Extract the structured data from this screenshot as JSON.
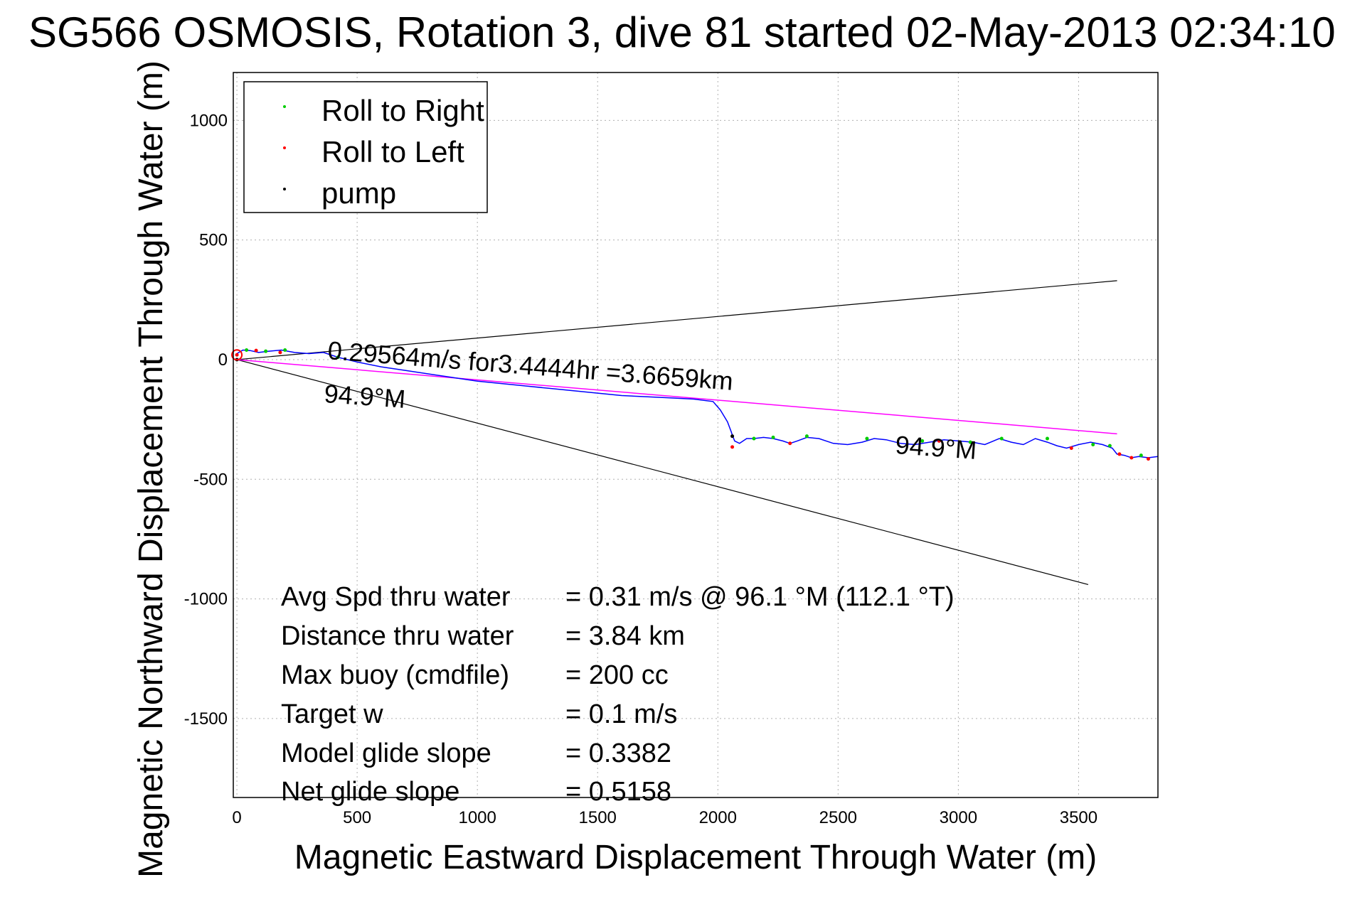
{
  "chart_data": {
    "type": "scatter",
    "title": "SG566 OSMOSIS, Rotation 3, dive 81 started 02-May-2013 02:34:10",
    "xlabel": "Magnetic Eastward Displacement Through Water (m)",
    "ylabel": "Magnetic Northward Displacement Through Water (m)",
    "xlim": [
      -15,
      3830
    ],
    "ylim": [
      -1830,
      1200
    ],
    "xticks": [
      0,
      500,
      1000,
      1500,
      2000,
      2500,
      3000,
      3500
    ],
    "yticks": [
      1000,
      500,
      0,
      -500,
      -1000,
      -1500
    ],
    "grid": true,
    "legend": {
      "placement": "top-left",
      "entries": [
        {
          "label": "Roll to Right",
          "color": "#00cc00"
        },
        {
          "label": "Roll to Left",
          "color": "#ff0000"
        },
        {
          "label": "pump",
          "color": "#000000"
        }
      ]
    },
    "colors": {
      "track": "#0000ff",
      "heading": "#ff00ff",
      "cone": "#000000"
    },
    "track": {
      "x": [
        0,
        25,
        55,
        90,
        130,
        185,
        240,
        300,
        360,
        420,
        500,
        600,
        700,
        800,
        900,
        1000,
        1100,
        1200,
        1300,
        1400,
        1500,
        1600,
        1700,
        1800,
        1900,
        1980,
        2010,
        2040,
        2055,
        2062,
        2070,
        2090,
        2120,
        2150,
        2190,
        2230,
        2270,
        2300,
        2330,
        2370,
        2420,
        2480,
        2540,
        2600,
        2650,
        2700,
        2760,
        2820,
        2880,
        2940,
        3000,
        3060,
        3110,
        3170,
        3220,
        3270,
        3320,
        3370,
        3410,
        3450,
        3500,
        3550,
        3600,
        3640,
        3660,
        3690,
        3720,
        3750,
        3790,
        3830
      ],
      "y": [
        25,
        40,
        38,
        30,
        35,
        40,
        30,
        25,
        30,
        10,
        -10,
        -30,
        -45,
        -60,
        -75,
        -90,
        -100,
        -110,
        -120,
        -130,
        -140,
        -150,
        -155,
        -160,
        -165,
        -175,
        -210,
        -260,
        -300,
        -320,
        -340,
        -350,
        -330,
        -330,
        -325,
        -330,
        -340,
        -350,
        -340,
        -325,
        -330,
        -350,
        -355,
        -345,
        -330,
        -335,
        -350,
        -355,
        -345,
        -335,
        -340,
        -345,
        -355,
        -330,
        -345,
        -355,
        -330,
        -345,
        -360,
        -370,
        -355,
        -345,
        -355,
        -370,
        -395,
        -400,
        -410,
        -405,
        -410,
        -405
      ]
    },
    "roll_right": {
      "x": [
        40,
        120,
        200,
        420,
        2150,
        2230,
        2370,
        2620,
        2850,
        3050,
        3180,
        3370,
        3560,
        3630,
        3760
      ],
      "y": [
        40,
        35,
        40,
        10,
        -330,
        -325,
        -320,
        -330,
        -340,
        -345,
        -330,
        -330,
        -355,
        -360,
        -400
      ]
    },
    "roll_left": {
      "x": [
        0,
        80,
        180,
        2060,
        2300,
        2920,
        3470,
        3670,
        3720,
        3790
      ],
      "y": [
        20,
        38,
        30,
        -365,
        -350,
        -340,
        -370,
        -395,
        -410,
        -415
      ]
    },
    "pump": {
      "x": [
        0,
        2060
      ],
      "y": [
        0,
        -320
      ]
    },
    "heading_line": {
      "x": [
        0,
        3660
      ],
      "y": [
        0,
        -310
      ]
    },
    "cone_lines": [
      {
        "x": [
          0,
          3660
        ],
        "y": [
          0,
          330
        ]
      },
      {
        "x": [
          0,
          3540
        ],
        "y": [
          0,
          -940
        ]
      }
    ],
    "annotations": {
      "speed": "0.29564m/s for3.4444hr =3.6659km",
      "heading_near": "94.9°M",
      "heading_far": "94.9°M"
    },
    "summary": [
      {
        "label": "Avg Spd thru water",
        "value": "=  0.31 m/s @  96.1 °M (112.1 °T)"
      },
      {
        "label": "Distance thru water",
        "value": "=  3.84 km"
      },
      {
        "label": "Max buoy (cmdfile)",
        "value": "= 200 cc"
      },
      {
        "label": "Target w",
        "value": "= 0.1 m/s"
      },
      {
        "label": "Model glide slope",
        "value": "= 0.3382"
      },
      {
        "label": "Net glide slope",
        "value": "= 0.5158"
      }
    ]
  }
}
